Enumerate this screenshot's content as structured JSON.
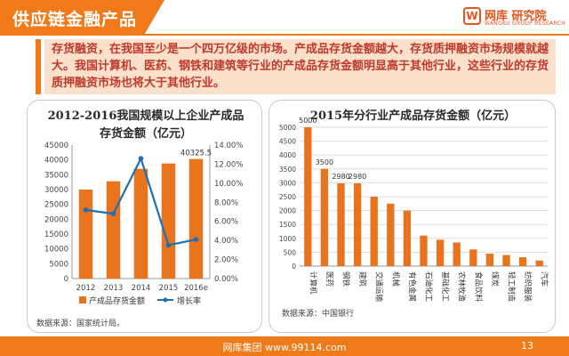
{
  "header": {
    "title": "供应链金融产品",
    "logo_mark": "W",
    "logo_name": "网库 研究院",
    "logo_sub": "WANGKU GROUP RESEARCH"
  },
  "intro": {
    "text": "存货融资，在我国至少是一个四万亿级的市场。产成品存货金额越大，存货质押融资市场规模就越大。我国计算机、医药、钢铁和建筑等行业的产成品存货金额明显高于其他行业，这些行业的存货质押融资市场也将大于其他行业。"
  },
  "chart_data": [
    {
      "type": "bar",
      "title": "2012-2016我国规模以上企业产成品存货金额（亿元）",
      "categories": [
        "2012",
        "2013",
        "2014",
        "2015",
        "2016e"
      ],
      "series": [
        {
          "name": "产成品存货金额",
          "type": "bar",
          "axis": "left",
          "color": "#e8741e",
          "values": [
            30000,
            32800,
            37000,
            38800,
            40325.5
          ]
        },
        {
          "name": "增长率",
          "type": "line",
          "axis": "right",
          "color": "#1f6fb5",
          "values": [
            0.072,
            0.068,
            0.126,
            0.035,
            0.041
          ]
        }
      ],
      "data_labels": [
        {
          "category": "2016e",
          "text": "40325.5"
        }
      ],
      "ylim_left": [
        0,
        45000
      ],
      "left_ticks": [
        "0",
        "5000",
        "10000",
        "15000",
        "20000",
        "25000",
        "30000",
        "35000",
        "40000",
        "45000"
      ],
      "ylim_right": [
        0,
        0.14
      ],
      "right_ticks": [
        "0.00%",
        "2.00%",
        "4.00%",
        "6.00%",
        "8.00%",
        "10.00%",
        "12.00%",
        "14.00%"
      ],
      "legend_position": "bottom",
      "source": "数据来源：国家统计局。"
    },
    {
      "type": "bar",
      "title": "2015年分行业产成品存货金额（亿元）",
      "categories": [
        "计算机",
        "医药",
        "钢铁",
        "建筑",
        "交通运输",
        "机械",
        "有色金属",
        "石油化工",
        "基础化工",
        "农林牧渔",
        "食品饮料",
        "煤炭",
        "轻工制造",
        "纺织服装",
        "汽车"
      ],
      "values": [
        5000,
        3500,
        2980,
        2980,
        2500,
        2250,
        2000,
        1100,
        950,
        850,
        600,
        450,
        400,
        320,
        200
      ],
      "data_labels": [
        {
          "category": "计算机",
          "text": "5000"
        },
        {
          "category": "医药",
          "text": "3500"
        },
        {
          "category": "钢铁",
          "text": "2980"
        },
        {
          "category": "建筑",
          "text": "2980"
        }
      ],
      "color": "#e8741e",
      "ylim": [
        0,
        5000
      ],
      "ticks": [
        "0",
        "500",
        "1000",
        "1500",
        "2000",
        "2500",
        "3000",
        "3500",
        "4000",
        "4500",
        "5000"
      ],
      "grid": true,
      "source": "数据来源：中国银行"
    }
  ],
  "footer": {
    "text": "网库集团 www.99114.com",
    "page": "13"
  }
}
